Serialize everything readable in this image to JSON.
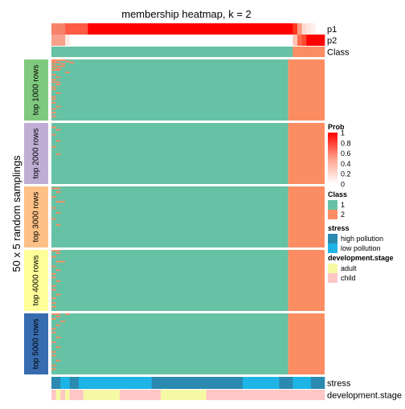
{
  "chart_data": {
    "type": "heatmap",
    "title": "membership heatmap, k = 2",
    "ylabel": "50 x 5 random samplings",
    "n_samples": 60,
    "top_annotations": [
      {
        "name": "p1",
        "colors": [
          "#f7826b",
          "#f7826b",
          "#f7826b",
          "#ff5a43",
          "#ff5a43",
          "#ff5a43",
          "#ff5a43",
          "#ff5a43",
          "#ff0000",
          "#ff0000",
          "#ff0000",
          "#ff0000",
          "#ff0000",
          "#ff0000",
          "#ff0000",
          "#ff0000",
          "#ff0000",
          "#ff0000",
          "#ff0000",
          "#ff0000",
          "#ff0000",
          "#ff0000",
          "#ff0000",
          "#ff0000",
          "#ff0000",
          "#ff0000",
          "#ff0000",
          "#ff0000",
          "#ff0000",
          "#ff0000",
          "#ff0000",
          "#ff0000",
          "#ff0000",
          "#ff0000",
          "#ff0000",
          "#ff0000",
          "#ff0000",
          "#ff0000",
          "#ff0000",
          "#ff0000",
          "#ff0000",
          "#ff0000",
          "#ff0000",
          "#ff0000",
          "#ff0000",
          "#ff0000",
          "#ff0000",
          "#ff0000",
          "#ff0000",
          "#ff0000",
          "#ff0000",
          "#ff0000",
          "#ff0000",
          "#ff3a22",
          "#ff9b86",
          "#ffd9cf",
          "#ffe8e2",
          "#ffeeea",
          "#ffffff",
          "#ffffff"
        ]
      },
      {
        "name": "p2",
        "colors": [
          "#f7a08c",
          "#f7a08c",
          "#f7a08c",
          "#ffe8e2",
          "#ffffff",
          "#ffffff",
          "#ffffff",
          "#ffffff",
          "#ffffff",
          "#ffffff",
          "#ffffff",
          "#ffffff",
          "#ffffff",
          "#ffffff",
          "#ffffff",
          "#ffffff",
          "#ffffff",
          "#ffffff",
          "#ffffff",
          "#ffffff",
          "#ffffff",
          "#ffffff",
          "#ffffff",
          "#ffffff",
          "#ffffff",
          "#ffffff",
          "#ffffff",
          "#ffffff",
          "#ffffff",
          "#ffffff",
          "#ffffff",
          "#ffffff",
          "#ffffff",
          "#ffffff",
          "#ffffff",
          "#ffffff",
          "#ffffff",
          "#ffffff",
          "#ffffff",
          "#ffffff",
          "#ffffff",
          "#ffffff",
          "#ffffff",
          "#ffffff",
          "#ffffff",
          "#ffffff",
          "#ffffff",
          "#ffffff",
          "#ffffff",
          "#ffffff",
          "#ffffff",
          "#ffffff",
          "#ffffff",
          "#ffc3b4",
          "#ff6a50",
          "#ff4a30",
          "#ff0000",
          "#ff0000",
          "#ff0000",
          "#ff0000"
        ]
      },
      {
        "name": "Class",
        "colors": [
          "#66c2a5",
          "#66c2a5",
          "#66c2a5",
          "#66c2a5",
          "#66c2a5",
          "#66c2a5",
          "#66c2a5",
          "#66c2a5",
          "#66c2a5",
          "#66c2a5",
          "#66c2a5",
          "#66c2a5",
          "#66c2a5",
          "#66c2a5",
          "#66c2a5",
          "#66c2a5",
          "#66c2a5",
          "#66c2a5",
          "#66c2a5",
          "#66c2a5",
          "#66c2a5",
          "#66c2a5",
          "#66c2a5",
          "#66c2a5",
          "#66c2a5",
          "#66c2a5",
          "#66c2a5",
          "#66c2a5",
          "#66c2a5",
          "#66c2a5",
          "#66c2a5",
          "#66c2a5",
          "#66c2a5",
          "#66c2a5",
          "#66c2a5",
          "#66c2a5",
          "#66c2a5",
          "#66c2a5",
          "#66c2a5",
          "#66c2a5",
          "#66c2a5",
          "#66c2a5",
          "#66c2a5",
          "#66c2a5",
          "#66c2a5",
          "#66c2a5",
          "#66c2a5",
          "#66c2a5",
          "#66c2a5",
          "#66c2a5",
          "#66c2a5",
          "#66c2a5",
          "#66c2a5",
          "#fc8d62",
          "#fc8d62",
          "#fc8d62",
          "#fc8d62",
          "#fc8d62",
          "#fc8d62",
          "#fc8d62"
        ]
      }
    ],
    "row_groups": [
      {
        "label": "top 1000 rows",
        "color": "#7fc97f",
        "boundary": 52,
        "noise": [
          [
            0,
            0,
            1
          ],
          [
            0,
            1,
            2
          ],
          [
            1,
            0,
            1
          ],
          [
            1,
            3,
            1
          ],
          [
            2,
            0,
            2
          ],
          [
            2,
            4,
            1
          ],
          [
            3,
            2,
            1
          ],
          [
            4,
            0,
            1
          ],
          [
            5,
            1,
            2
          ],
          [
            6,
            0,
            1
          ],
          [
            7,
            1,
            1
          ],
          [
            8,
            0,
            2
          ],
          [
            10,
            3,
            1
          ],
          [
            12,
            0,
            1
          ],
          [
            14,
            1,
            1
          ],
          [
            16,
            0,
            1
          ],
          [
            18,
            0,
            2
          ],
          [
            20,
            1,
            1
          ],
          [
            22,
            0,
            1
          ],
          [
            24,
            0,
            1
          ],
          [
            27,
            1,
            1
          ],
          [
            30,
            0,
            1
          ],
          [
            32,
            0,
            1
          ],
          [
            35,
            0,
            1
          ],
          [
            38,
            1,
            1
          ],
          [
            40,
            0,
            1
          ],
          [
            43,
            0,
            1
          ],
          [
            46,
            0,
            1
          ]
        ],
        "noise2": [
          [
            18,
            42,
            1
          ],
          [
            22,
            43,
            1
          ],
          [
            26,
            41,
            2
          ],
          [
            28,
            44,
            1
          ],
          [
            30,
            42,
            1
          ],
          [
            32,
            43,
            2
          ],
          [
            34,
            44,
            1
          ],
          [
            35,
            45,
            2
          ],
          [
            38,
            45,
            3
          ],
          [
            40,
            46,
            3
          ],
          [
            43,
            47,
            3
          ],
          [
            46,
            48,
            2
          ]
        ]
      },
      {
        "label": "top 2000 rows",
        "color": "#beaed4",
        "boundary": 52,
        "noise": [
          [
            3,
            0,
            1
          ],
          [
            5,
            1,
            1
          ],
          [
            9,
            0,
            1
          ],
          [
            14,
            1,
            1
          ],
          [
            19,
            0,
            1
          ],
          [
            25,
            1,
            1
          ]
        ],
        "noise2": [
          [
            34,
            43,
            1
          ],
          [
            37,
            44,
            1
          ],
          [
            40,
            45,
            2
          ],
          [
            42,
            46,
            2
          ],
          [
            44,
            47,
            1
          ],
          [
            46,
            48,
            1
          ]
        ]
      },
      {
        "label": "top 3000 rows",
        "color": "#fdc086",
        "boundary": 52,
        "noise": [
          [
            1,
            0,
            2
          ],
          [
            4,
            1,
            1
          ],
          [
            8,
            0,
            1
          ],
          [
            12,
            1,
            2
          ],
          [
            17,
            0,
            1
          ],
          [
            21,
            1,
            1
          ],
          [
            26,
            0,
            1
          ],
          [
            31,
            1,
            1
          ]
        ],
        "noise2": []
      },
      {
        "label": "top 4000 rows",
        "color": "#ffff99",
        "boundary": 52,
        "noise": [
          [
            0,
            0,
            2
          ],
          [
            2,
            1,
            1
          ],
          [
            5,
            0,
            1
          ],
          [
            9,
            1,
            2
          ],
          [
            13,
            0,
            1
          ],
          [
            16,
            1,
            1
          ],
          [
            19,
            0,
            1
          ],
          [
            22,
            0,
            1
          ],
          [
            25,
            1,
            1
          ],
          [
            29,
            0,
            1
          ],
          [
            32,
            0,
            1
          ],
          [
            36,
            1,
            1
          ],
          [
            39,
            0,
            1
          ],
          [
            43,
            0,
            1
          ],
          [
            46,
            0,
            1
          ]
        ],
        "noise2": []
      },
      {
        "label": "top 5000 rows",
        "color": "#386cb0",
        "boundary": 52,
        "noise": [
          [
            0,
            0,
            2
          ],
          [
            0,
            3,
            1
          ],
          [
            2,
            1,
            1
          ],
          [
            4,
            0,
            1
          ],
          [
            6,
            2,
            1
          ],
          [
            9,
            1,
            1
          ],
          [
            12,
            0,
            1
          ],
          [
            15,
            0,
            1
          ],
          [
            19,
            1,
            1
          ],
          [
            23,
            0,
            1
          ],
          [
            27,
            1,
            1
          ],
          [
            31,
            0,
            1
          ],
          [
            34,
            0,
            1
          ],
          [
            38,
            1,
            1
          ],
          [
            42,
            0,
            1
          ],
          [
            45,
            0,
            1
          ]
        ],
        "noise2": []
      }
    ],
    "bottom_annotations": [
      {
        "name": "stress",
        "colors": [
          "#2a8ab0",
          "#2a8ab0",
          "#1eb4e6",
          "#1eb4e6",
          "#2a8ab0",
          "#2a8ab0",
          "#1eb4e6",
          "#1eb4e6",
          "#1eb4e6",
          "#1eb4e6",
          "#1eb4e6",
          "#1eb4e6",
          "#1eb4e6",
          "#1eb4e6",
          "#1eb4e6",
          "#1eb4e6",
          "#1eb4e6",
          "#1eb4e6",
          "#1eb4e6",
          "#1eb4e6",
          "#1eb4e6",
          "#1eb4e6",
          "#2a8ab0",
          "#2a8ab0",
          "#2a8ab0",
          "#2a8ab0",
          "#2a8ab0",
          "#2a8ab0",
          "#2a8ab0",
          "#2a8ab0",
          "#2a8ab0",
          "#2a8ab0",
          "#2a8ab0",
          "#2a8ab0",
          "#2a8ab0",
          "#2a8ab0",
          "#2a8ab0",
          "#2a8ab0",
          "#2a8ab0",
          "#2a8ab0",
          "#2a8ab0",
          "#2a8ab0",
          "#1eb4e6",
          "#1eb4e6",
          "#1eb4e6",
          "#1eb4e6",
          "#1eb4e6",
          "#1eb4e6",
          "#1eb4e6",
          "#1eb4e6",
          "#2a8ab0",
          "#2a8ab0",
          "#2a8ab0",
          "#1eb4e6",
          "#1eb4e6",
          "#1eb4e6",
          "#1eb4e6",
          "#2a8ab0",
          "#2a8ab0",
          "#2a8ab0"
        ]
      },
      {
        "name": "development.stage",
        "colors": [
          "#ffc6c6",
          "#f6f9a4",
          "#ffc6c6",
          "#f6f9a4",
          "#ffc6c6",
          "#ffc6c6",
          "#ffc6c6",
          "#f6f9a4",
          "#f6f9a4",
          "#f6f9a4",
          "#f6f9a4",
          "#f6f9a4",
          "#f6f9a4",
          "#f6f9a4",
          "#f6f9a4",
          "#ffc6c6",
          "#ffc6c6",
          "#ffc6c6",
          "#ffc6c6",
          "#ffc6c6",
          "#ffc6c6",
          "#ffc6c6",
          "#ffc6c6",
          "#ffc6c6",
          "#f6f9a4",
          "#f6f9a4",
          "#f6f9a4",
          "#f6f9a4",
          "#f6f9a4",
          "#f6f9a4",
          "#f6f9a4",
          "#f6f9a4",
          "#f6f9a4",
          "#f6f9a4",
          "#ffc6c6",
          "#ffc6c6",
          "#ffc6c6",
          "#ffc6c6",
          "#ffc6c6",
          "#ffc6c6",
          "#ffc6c6",
          "#ffc6c6",
          "#ffc6c6",
          "#ffc6c6",
          "#ffc6c6",
          "#ffc6c6",
          "#ffc6c6",
          "#ffc6c6",
          "#ffc6c6",
          "#ffc6c6",
          "#ffc6c6",
          "#ffc6c6",
          "#ffc6c6",
          "#ffc6c6",
          "#ffc6c6",
          "#ffc6c6",
          "#ffc6c6",
          "#ffc6c6",
          "#ffc6c6",
          "#ffc6c6"
        ]
      }
    ],
    "legend": {
      "prob": {
        "title": "Prob",
        "ticks": [
          "1",
          "0.8",
          "0.6",
          "0.4",
          "0.2",
          "0"
        ]
      },
      "class": {
        "title": "Class",
        "items": [
          {
            "label": "1",
            "color": "#66c2a5"
          },
          {
            "label": "2",
            "color": "#fc8d62"
          }
        ]
      },
      "stress": {
        "title": "stress",
        "items": [
          {
            "label": "high pollution",
            "color": "#2a8ab0"
          },
          {
            "label": "low pollution",
            "color": "#1eb4e6"
          }
        ]
      },
      "development_stage": {
        "title": "development.stage",
        "items": [
          {
            "label": "adult",
            "color": "#f6f9a4"
          },
          {
            "label": "child",
            "color": "#ffc6c6"
          }
        ]
      }
    },
    "colors": {
      "class1": "#66c2a5",
      "class2": "#fc8d62"
    }
  }
}
